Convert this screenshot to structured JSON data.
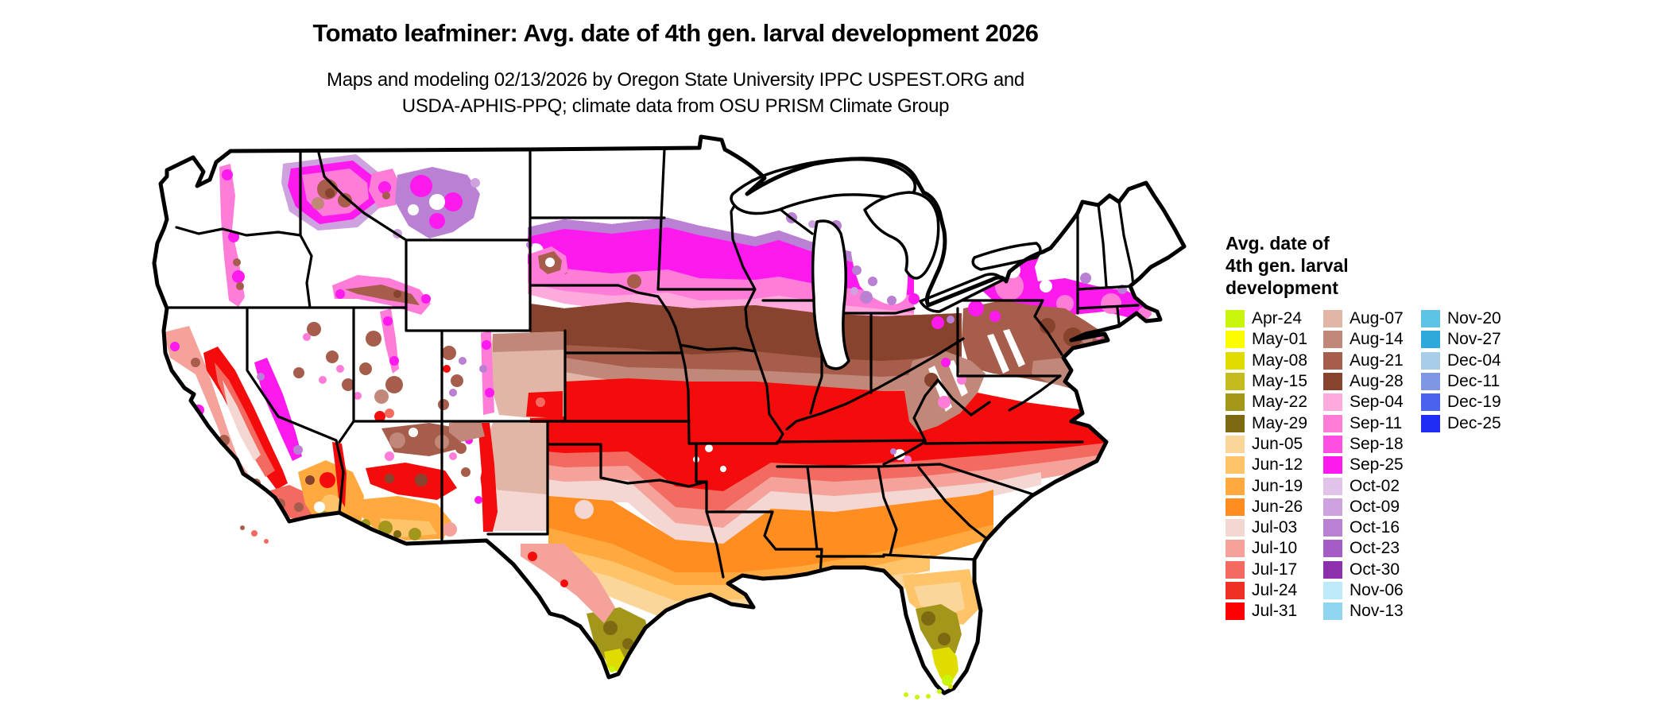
{
  "header": {
    "title": "Tomato leafminer: Avg. date of 4th gen. larval development 2026",
    "subtitle_line1": "Maps and modeling 02/13/2026 by Oregon State University IPPC USPEST.ORG and",
    "subtitle_line2": "USDA-APHIS-PPQ; climate data from OSU PRISM Climate Group"
  },
  "legend": {
    "title_lines": [
      "Avg. date of",
      "4th gen. larval",
      "development"
    ],
    "columns": [
      {
        "entries": [
          {
            "label": "Apr-24",
            "color": "#c9f40c"
          },
          {
            "label": "May-01",
            "color": "#fdfc00"
          },
          {
            "label": "May-08",
            "color": "#e0dc00"
          },
          {
            "label": "May-15",
            "color": "#c5ba1e"
          },
          {
            "label": "May-22",
            "color": "#a2961b"
          },
          {
            "label": "May-29",
            "color": "#7c6a12"
          },
          {
            "label": "Jun-05",
            "color": "#fbd69a"
          },
          {
            "label": "Jun-12",
            "color": "#ffc469"
          },
          {
            "label": "Jun-19",
            "color": "#ffa93e"
          },
          {
            "label": "Jun-26",
            "color": "#ff8d20"
          },
          {
            "label": "Jul-03",
            "color": "#f4d7d2"
          },
          {
            "label": "Jul-10",
            "color": "#f5a29b"
          },
          {
            "label": "Jul-17",
            "color": "#f26a60"
          },
          {
            "label": "Jul-24",
            "color": "#ee3124"
          },
          {
            "label": "Jul-31",
            "color": "#fe0000"
          }
        ]
      },
      {
        "entries": [
          {
            "label": "Aug-07",
            "color": "#e2b6a7"
          },
          {
            "label": "Aug-14",
            "color": "#c1887a"
          },
          {
            "label": "Aug-21",
            "color": "#a65d4b"
          },
          {
            "label": "Aug-28",
            "color": "#87432d"
          },
          {
            "label": "Sep-04",
            "color": "#ffaadc"
          },
          {
            "label": "Sep-11",
            "color": "#ff7cd8"
          },
          {
            "label": "Sep-18",
            "color": "#ff4fe3"
          },
          {
            "label": "Sep-25",
            "color": "#fe19ef"
          },
          {
            "label": "Oct-02",
            "color": "#e1c3ea"
          },
          {
            "label": "Oct-09",
            "color": "#cda2df"
          },
          {
            "label": "Oct-16",
            "color": "#b980d3"
          },
          {
            "label": "Oct-23",
            "color": "#a55cc7"
          },
          {
            "label": "Oct-30",
            "color": "#8d30ae"
          },
          {
            "label": "Nov-06",
            "color": "#bdebf9"
          },
          {
            "label": "Nov-13",
            "color": "#8fd5ef"
          }
        ]
      },
      {
        "entries": [
          {
            "label": "Nov-20",
            "color": "#5fc3e8"
          },
          {
            "label": "Nov-27",
            "color": "#2fa9dc"
          },
          {
            "label": "Dec-04",
            "color": "#a9cce9"
          },
          {
            "label": "Dec-11",
            "color": "#7e96e3"
          },
          {
            "label": "Dec-19",
            "color": "#4a63ee"
          },
          {
            "label": "Dec-25",
            "color": "#202df5"
          }
        ]
      }
    ]
  }
}
